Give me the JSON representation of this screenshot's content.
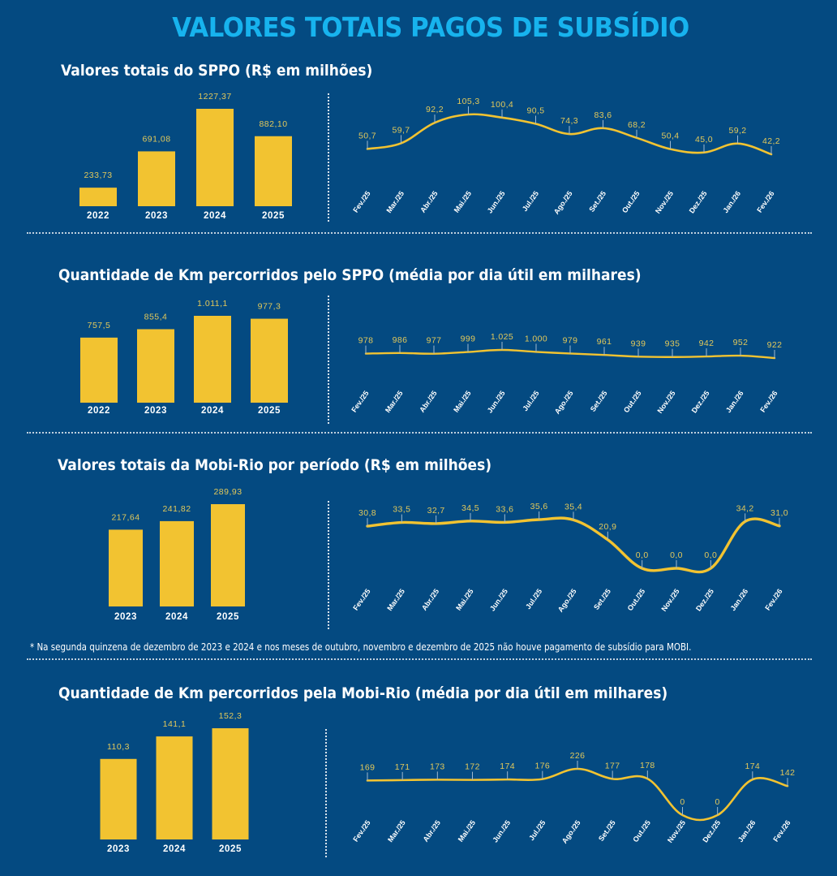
{
  "page": {
    "title": "VALORES TOTAIS PAGOS DE SUBSÍDIO",
    "footnote": "* Na segunda quinzena de dezembro de 2023 e 2024 e nos meses de outubro, novembro e dezembro de 2025 não houve pagamento de subsídio para MOBI.",
    "colors": {
      "background": "#044a81",
      "title": "#17b3ee",
      "bar": "#f2c331",
      "line": "#f2c331",
      "value_label": "#e3c95a",
      "axis_label": "#ffffff"
    }
  },
  "sections": [
    {
      "title": "Valores totais do SPPO (R$ em milhões)"
    },
    {
      "title": "Quantidade de Km percorridos pelo SPPO (média por dia útil em milhares)"
    },
    {
      "title": "Valores totais da Mobi-Rio por período (R$ em milhões)"
    },
    {
      "title": "Quantidade de Km percorridos pela Mobi-Rio (média por dia útil em milhares)"
    }
  ],
  "chart_data": [
    {
      "id": "sppo-valores-anual",
      "type": "bar",
      "title": "Valores totais do SPPO (R$ em milhões)",
      "categories": [
        "2022",
        "2023",
        "2024",
        "2025"
      ],
      "values": [
        233.73,
        691.08,
        1227.37,
        882.1
      ],
      "labels": [
        "233,73",
        "691,08",
        "1227,37",
        "882,10"
      ],
      "ylim": [
        0,
        1227.37
      ],
      "grid": false,
      "legend": "none"
    },
    {
      "id": "sppo-valores-mensal",
      "type": "line",
      "title": "Valores totais do SPPO (R$ em milhões)",
      "categories": [
        "Fev./25",
        "Mar./25",
        "Abr./25",
        "Mai./25",
        "Jun./25",
        "Jul./25",
        "Ago./25",
        "Set./25",
        "Out./25",
        "Nov./25",
        "Dez./25",
        "Jan./26",
        "Fev./26"
      ],
      "values": [
        50.7,
        59.7,
        92.2,
        105.3,
        100.4,
        90.5,
        74.3,
        83.6,
        68.2,
        50.4,
        45.0,
        59.2,
        42.2
      ],
      "labels": [
        "50,7",
        "59,7",
        "92,2",
        "105,3",
        "100,4",
        "90,5",
        "74,3",
        "83,6",
        "68,2",
        "50,4",
        "45,0",
        "59,2",
        "42,2"
      ],
      "ylim": [
        42.2,
        105.3
      ],
      "grid": false,
      "legend": "none"
    },
    {
      "id": "sppo-km-anual",
      "type": "bar",
      "title": "Quantidade de Km percorridos pelo SPPO (média por dia útil em milhares)",
      "categories": [
        "2022",
        "2023",
        "2024",
        "2025"
      ],
      "values": [
        757.5,
        855.4,
        1011.1,
        977.3
      ],
      "labels": [
        "757,5",
        "855,4",
        "1.011,1",
        "977,3"
      ],
      "ylim": [
        0,
        1011.1
      ],
      "grid": false,
      "legend": "none"
    },
    {
      "id": "sppo-km-mensal",
      "type": "line",
      "title": "Quantidade de Km percorridos pelo SPPO (média por dia útil em milhares)",
      "categories": [
        "Fev./25",
        "Mar./25",
        "Abr./25",
        "Mai./25",
        "Jun./25",
        "Jul./25",
        "Ago./25",
        "Set./25",
        "Out./25",
        "Nov./25",
        "Dez./25",
        "Jan./26",
        "Fev./26"
      ],
      "values": [
        978,
        986,
        977,
        999,
        1025,
        1000,
        979,
        961,
        939,
        935,
        942,
        952,
        922
      ],
      "labels": [
        "978",
        "986",
        "977",
        "999",
        "1.025",
        "1.000",
        "979",
        "961",
        "939",
        "935",
        "942",
        "952",
        "922"
      ],
      "ylim": [
        0,
        1025
      ],
      "grid": false,
      "legend": "none"
    },
    {
      "id": "mobi-valores-anual",
      "type": "bar",
      "title": "Valores totais da Mobi-Rio por período (R$ em milhões)",
      "categories": [
        "2023",
        "2024",
        "2025"
      ],
      "values": [
        217.64,
        241.82,
        289.93
      ],
      "labels": [
        "217,64",
        "241,82",
        "289,93"
      ],
      "ylim": [
        0,
        289.93
      ],
      "grid": false,
      "legend": "none"
    },
    {
      "id": "mobi-valores-mensal",
      "type": "line",
      "title": "Valores totais da Mobi-Rio por período (R$ em milhões)",
      "categories": [
        "Fev./25",
        "Mar./25",
        "Abr./25",
        "Mai./25",
        "Jun./25",
        "Jul./25",
        "Ago./25",
        "Set./25",
        "Out./25",
        "Nov./25",
        "Dez./25",
        "Jan./26",
        "Fev./26"
      ],
      "values": [
        30.8,
        33.5,
        32.7,
        34.5,
        33.6,
        35.6,
        35.4,
        20.9,
        0.0,
        0.0,
        0.0,
        34.2,
        31.0
      ],
      "labels": [
        "30,8",
        "33,5",
        "32,7",
        "34,5",
        "33,6",
        "35,6",
        "35,4",
        "20,9",
        "0,0",
        "0,0",
        "0,0",
        "34,2",
        "31,0"
      ],
      "ylim": [
        0,
        35.6
      ],
      "grid": false,
      "legend": "none"
    },
    {
      "id": "mobi-km-anual",
      "type": "bar",
      "title": "Quantidade de Km percorridos pela Mobi-Rio (média por dia útil em milhares)",
      "categories": [
        "2023",
        "2024",
        "2025"
      ],
      "values": [
        110.3,
        141.1,
        152.3
      ],
      "labels": [
        "110,3",
        "141,1",
        "152,3"
      ],
      "ylim": [
        0,
        152.3
      ],
      "grid": false,
      "legend": "none"
    },
    {
      "id": "mobi-km-mensal",
      "type": "line",
      "title": "Quantidade de Km percorridos pela Mobi-Rio (média por dia útil em milhares)",
      "categories": [
        "Fev./25",
        "Mar./25",
        "Abr./25",
        "Mai./25",
        "Jun./25",
        "Jul./25",
        "Ago./25",
        "Set./25",
        "Out./25",
        "Nov./25",
        "Dez./25",
        "Jan./26",
        "Fev./26"
      ],
      "values": [
        169,
        171,
        173,
        172,
        174,
        176,
        226,
        177,
        178,
        0,
        0,
        174,
        142
      ],
      "labels": [
        "169",
        "171",
        "173",
        "172",
        "174",
        "176",
        "226",
        "177",
        "178",
        "0",
        "0",
        "174",
        "142"
      ],
      "ylim": [
        0,
        226
      ],
      "grid": false,
      "legend": "none"
    }
  ]
}
